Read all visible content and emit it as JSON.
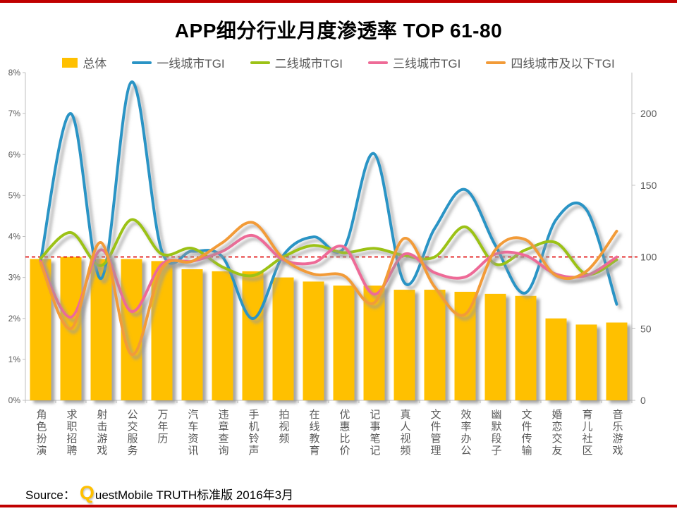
{
  "page": {
    "title": "APP细分行业月度渗透率 TOP 61-80",
    "accent_bar_color": "#C00000",
    "background": "#FFFFFF"
  },
  "legend": [
    {
      "label": "总体",
      "type": "bar",
      "color": "#FFC000"
    },
    {
      "label": "一线城市TGI",
      "type": "line",
      "color": "#2A94C5"
    },
    {
      "label": "二线城市TGI",
      "type": "line",
      "color": "#9CC216"
    },
    {
      "label": "三线城市TGI",
      "type": "line",
      "color": "#EE6B97"
    },
    {
      "label": "四线城市及以下TGI",
      "type": "line",
      "color": "#F29B38"
    }
  ],
  "source": {
    "prefix": "Source：",
    "logo_q": "Q",
    "text": "uestMobile TRUTH标准版 2016年3月"
  },
  "chart_data": {
    "type": "bar+line",
    "title": "APP细分行业月度渗透率 TOP 61-80",
    "categories": [
      "角色扮演",
      "求职招聘",
      "射击游戏",
      "公交服务",
      "万年历",
      "汽车资讯",
      "违章查询",
      "手机铃声",
      "拍视频",
      "在线教育",
      "优惠比价",
      "记事笔记",
      "真人视频",
      "文件管理",
      "效率办公",
      "幽默段子",
      "文件传输",
      "婚恋交友",
      "育儿社区",
      "音乐游戏"
    ],
    "bar_series": {
      "name": "总体",
      "unit": "%",
      "color": "#FFC000",
      "axis": "left",
      "values": [
        3.45,
        3.5,
        3.45,
        3.45,
        3.4,
        3.2,
        3.15,
        3.15,
        3.0,
        2.9,
        2.8,
        2.8,
        2.7,
        2.7,
        2.65,
        2.6,
        2.55,
        2.0,
        1.85,
        1.9
      ]
    },
    "line_series": [
      {
        "name": "一线城市TGI",
        "color": "#2A94C5",
        "axis": "right",
        "values": [
          97,
          200,
          85,
          222,
          104,
          104,
          100,
          57,
          101,
          114,
          106,
          172,
          82,
          120,
          147,
          108,
          75,
          126,
          133,
          67
        ]
      },
      {
        "name": "二线城市TGI",
        "color": "#9CC216",
        "axis": "right",
        "values": [
          99,
          117,
          94,
          126,
          102,
          106,
          93,
          87,
          100,
          108,
          103,
          106,
          101,
          100,
          121,
          95,
          105,
          110,
          88,
          98
        ]
      },
      {
        "name": "三线城市TGI",
        "color": "#EE6B97",
        "axis": "right",
        "values": [
          97,
          58,
          105,
          62,
          95,
          97,
          104,
          115,
          98,
          96,
          107,
          74,
          102,
          89,
          86,
          102,
          101,
          88,
          87,
          100
        ]
      },
      {
        "name": "四线城市及以下TGI",
        "color": "#F29B38",
        "axis": "right",
        "values": [
          96,
          50,
          110,
          32,
          92,
          97,
          110,
          124,
          99,
          88,
          87,
          68,
          113,
          79,
          60,
          105,
          112,
          87,
          90,
          118
        ]
      }
    ],
    "left_axis": {
      "unit": "%",
      "min": 0,
      "max": 8,
      "ticks": [
        "0%",
        "1%",
        "2%",
        "3%",
        "4%",
        "5%",
        "6%",
        "7%",
        "8%"
      ]
    },
    "right_axis": {
      "name": "TGI",
      "min": 0,
      "max": 228.57,
      "ticks": [
        0,
        50,
        100,
        150,
        200
      ]
    },
    "reference_line": {
      "value": 100,
      "axis": "right",
      "color": "#E00000",
      "style": "dashed"
    },
    "grid": "off",
    "legend_position": "top"
  }
}
